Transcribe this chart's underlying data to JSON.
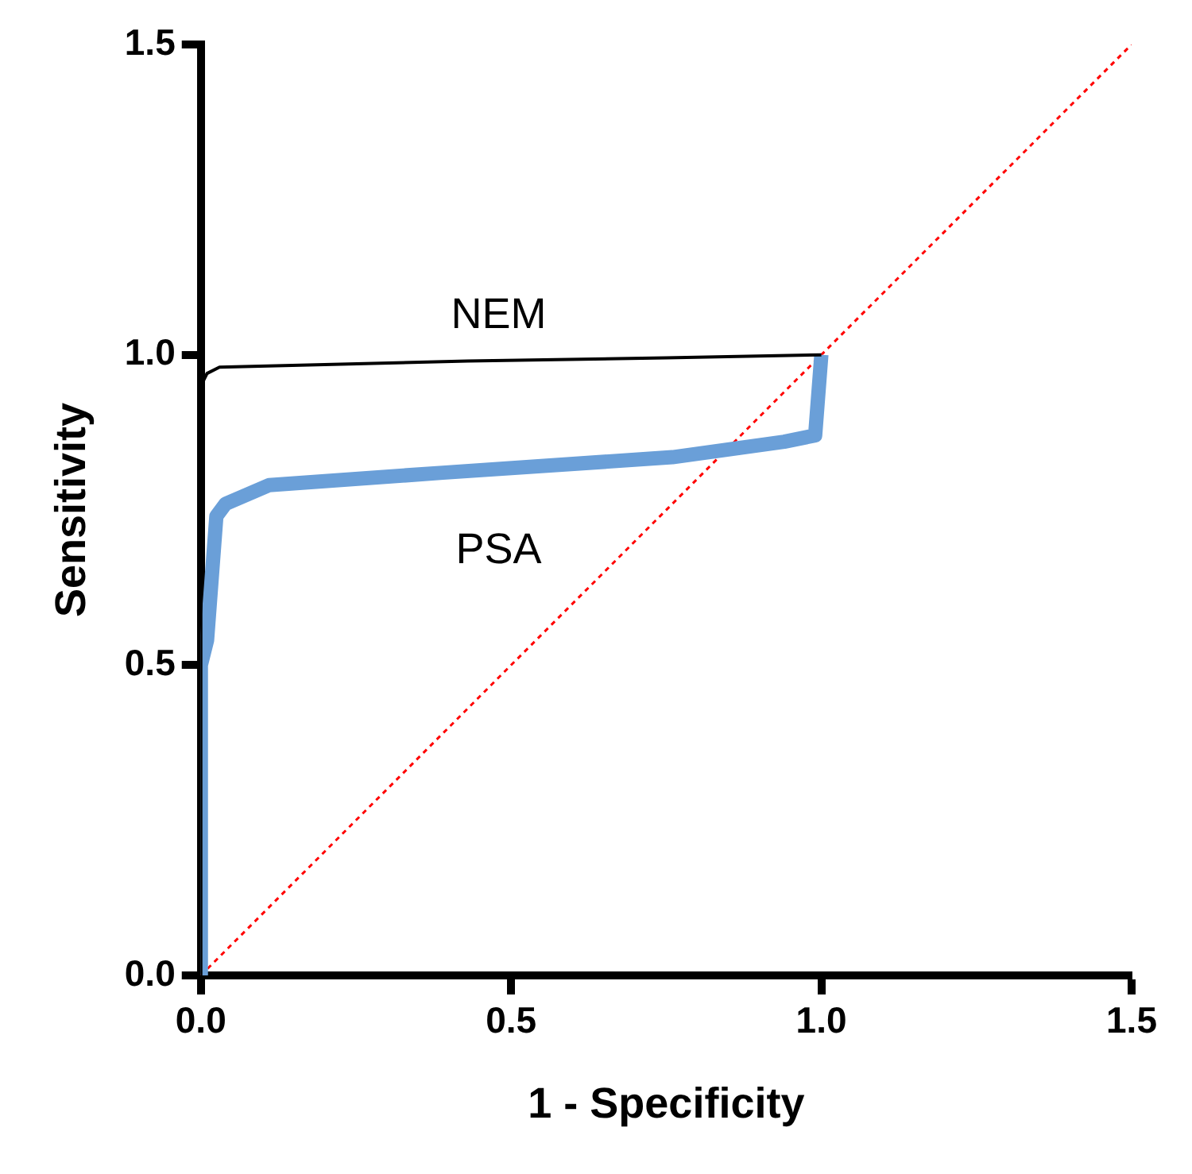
{
  "chart_data": {
    "type": "line",
    "xlabel": "1 - Specificity",
    "ylabel": "Sensitivity",
    "xlim": [
      0,
      1.5
    ],
    "ylim": [
      0,
      1.5
    ],
    "xticks": [
      {
        "value": 0,
        "label": "0.0"
      },
      {
        "value": 0.5,
        "label": "0.5"
      },
      {
        "value": 1,
        "label": "1.0"
      },
      {
        "value": 1.5,
        "label": "1.5"
      }
    ],
    "yticks": [
      {
        "value": 0,
        "label": "0.0"
      },
      {
        "value": 0.5,
        "label": "0.5"
      },
      {
        "value": 1,
        "label": "1.0"
      },
      {
        "value": 1.5,
        "label": "1.5"
      }
    ],
    "grid": false,
    "legend": false,
    "marker": "none",
    "series": [
      {
        "name": "NEM",
        "color": "#000000",
        "line_style": "solid",
        "x": [
          0,
          0,
          0.01,
          0.03,
          0.43,
          0.75,
          1
        ],
        "values": [
          0,
          0.95,
          0.97,
          0.98,
          0.99,
          0.995,
          1
        ]
      },
      {
        "name": "PSA",
        "color": "#6a9fd8",
        "line_style": "solid",
        "x": [
          0,
          0,
          0.01,
          0.025,
          0.04,
          0.11,
          0.39,
          0.76,
          0.94,
          0.99,
          1
        ],
        "values": [
          0,
          0.5,
          0.54,
          0.74,
          0.76,
          0.79,
          0.81,
          0.835,
          0.86,
          0.87,
          1
        ]
      },
      {
        "color": "#ff0000",
        "line_style": "dotted",
        "x": [
          0,
          1.5
        ],
        "values": [
          0,
          1.5
        ]
      }
    ]
  }
}
